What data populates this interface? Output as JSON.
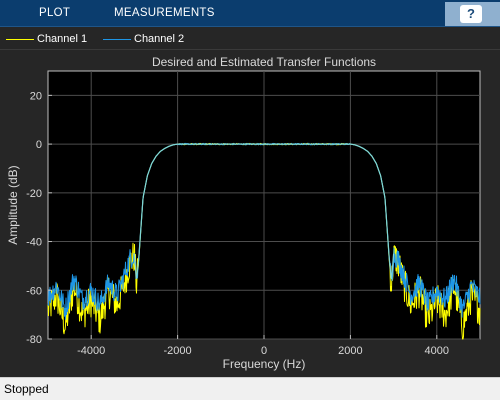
{
  "toolstrip": {
    "tabs": [
      {
        "label": "PLOT"
      },
      {
        "label": "MEASUREMENTS"
      }
    ],
    "help_label": "?"
  },
  "legend": [
    {
      "name": "Channel 1",
      "color": "#ffff00"
    },
    {
      "name": "Channel 2",
      "color": "#1e96e6"
    }
  ],
  "status": {
    "text": "Stopped"
  },
  "chart_data": {
    "type": "line",
    "title": "Desired and Estimated Transfer Functions",
    "xlabel": "Frequency (Hz)",
    "ylabel": "Amplitude (dB)",
    "xlim": [
      -5000,
      5000
    ],
    "ylim": [
      -80,
      30
    ],
    "xticks": [
      -4000,
      -2000,
      0,
      2000,
      4000
    ],
    "yticks": [
      20,
      0,
      -20,
      -40,
      -60,
      -80
    ],
    "xtick_labels": [
      "-4000",
      "-2000",
      "0",
      "2000",
      "4000"
    ],
    "ytick_labels": [
      "20",
      "0",
      "-20",
      "-40",
      "-60",
      "-80"
    ],
    "grid": true,
    "background": "#000000",
    "series": [
      {
        "name": "Channel 1",
        "color": "#ffff00",
        "x": [
          -5000,
          -4800,
          -4600,
          -4400,
          -4200,
          -4000,
          -3800,
          -3600,
          -3400,
          -3200,
          -3100,
          -3000,
          -2950,
          -2900,
          -2800,
          -2700,
          -2600,
          -2500,
          -2400,
          -2300,
          -2200,
          -2100,
          -2000,
          -1800,
          -1500,
          -1000,
          -500,
          0,
          500,
          1000,
          1500,
          1800,
          2000,
          2100,
          2200,
          2300,
          2400,
          2500,
          2600,
          2700,
          2800,
          2900,
          2950,
          3000,
          3100,
          3200,
          3400,
          3600,
          3800,
          4000,
          4200,
          4400,
          4600,
          4800,
          5000
        ],
        "y": [
          -68,
          -62,
          -75,
          -58,
          -70,
          -64,
          -72,
          -60,
          -66,
          -55,
          -48,
          -46,
          -58,
          -48,
          -22,
          -13,
          -8,
          -5,
          -3,
          -1.8,
          -0.9,
          -0.3,
          0,
          0,
          0,
          0,
          0,
          0,
          0,
          0,
          0,
          0,
          0,
          -0.3,
          -0.9,
          -1.8,
          -3,
          -5,
          -8,
          -13,
          -22,
          -48,
          -58,
          -46,
          -48,
          -55,
          -66,
          -60,
          -72,
          -64,
          -70,
          -58,
          -75,
          -62,
          -68
        ]
      },
      {
        "name": "Channel 2",
        "color": "#1e96e6",
        "x": [
          -5000,
          -4800,
          -4600,
          -4400,
          -4200,
          -4000,
          -3800,
          -3600,
          -3400,
          -3200,
          -3100,
          -3000,
          -2950,
          -2900,
          -2800,
          -2700,
          -2600,
          -2500,
          -2400,
          -2300,
          -2200,
          -2100,
          -2000,
          -1800,
          -1500,
          -1000,
          -500,
          0,
          500,
          1000,
          1500,
          1800,
          2000,
          2100,
          2200,
          2300,
          2400,
          2500,
          2600,
          2700,
          2800,
          2900,
          2950,
          3000,
          3100,
          3200,
          3400,
          3600,
          3800,
          4000,
          4200,
          4400,
          4600,
          4800,
          5000
        ],
        "y": [
          -63,
          -58,
          -68,
          -55,
          -64,
          -60,
          -66,
          -57,
          -62,
          -52,
          -47,
          -45,
          -56,
          -47,
          -22,
          -13,
          -8,
          -5,
          -3,
          -1.8,
          -0.9,
          -0.3,
          0,
          0,
          0,
          0,
          0,
          0,
          0,
          0,
          0,
          0,
          0,
          -0.3,
          -0.9,
          -1.8,
          -3,
          -5,
          -8,
          -13,
          -22,
          -47,
          -56,
          -45,
          -47,
          -52,
          -62,
          -57,
          -66,
          -60,
          -64,
          -55,
          -68,
          -58,
          -63
        ]
      },
      {
        "name": "",
        "color": "#7fd6d6",
        "x": [
          -3000,
          -2950,
          -2900,
          -2800,
          -2700,
          -2600,
          -2500,
          -2400,
          -2300,
          -2200,
          -2100,
          -2000,
          -1800,
          -1500,
          -1000,
          -500,
          0,
          500,
          1000,
          1500,
          1800,
          2000,
          2100,
          2200,
          2300,
          2400,
          2500,
          2600,
          2700,
          2800,
          2900,
          2950,
          3000
        ],
        "y": [
          -45,
          -56,
          -47,
          -22,
          -13,
          -8,
          -5,
          -3,
          -1.8,
          -0.9,
          -0.3,
          0,
          0,
          0,
          0,
          0,
          0,
          0,
          0,
          0,
          0,
          0,
          -0.3,
          -0.9,
          -1.8,
          -3,
          -5,
          -8,
          -13,
          -22,
          -47,
          -56,
          -45
        ]
      }
    ]
  }
}
